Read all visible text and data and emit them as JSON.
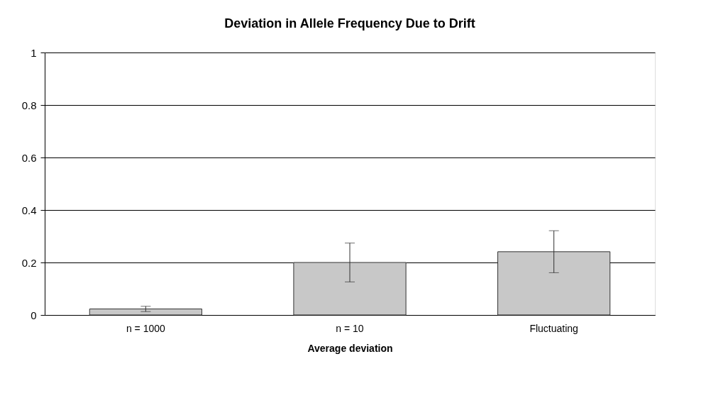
{
  "chart_data": {
    "type": "bar",
    "title": "Deviation in Allele Frequency Due to Drift",
    "xlabel": "Average deviation",
    "categories": [
      "n = 1000",
      "n = 10",
      "Fluctuating"
    ],
    "values": [
      0.023,
      0.2,
      0.241
    ],
    "errors": [
      0.01,
      0.074,
      0.08
    ],
    "color": "#c8c8c8",
    "ylim": [
      0,
      1
    ],
    "yticks": [
      0,
      0.2,
      0.4,
      0.6,
      0.8,
      1
    ],
    "grid": "y"
  }
}
